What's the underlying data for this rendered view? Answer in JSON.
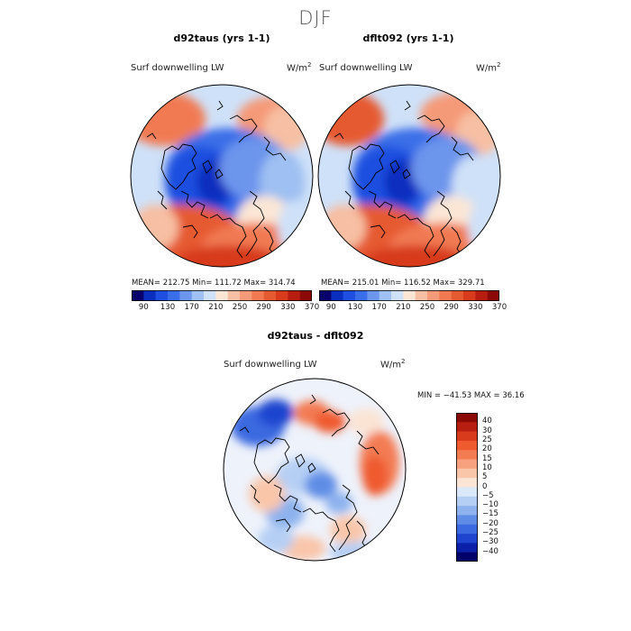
{
  "page": {
    "title": "DJF"
  },
  "panels": [
    {
      "title": "d92taus (yrs 1-1)",
      "variable": "Surf downwelling LW",
      "units": "W/m",
      "units_sup": "2",
      "stats": "MEAN= 212.75   Min= 111.72   Max= 314.74"
    },
    {
      "title": "dflt092 (yrs 1-1)",
      "variable": "Surf downwelling LW",
      "units": "W/m",
      "units_sup": "2",
      "stats": "MEAN= 215.01   Min= 116.52   Max= 329.71"
    },
    {
      "title": "d92taus - dflt092",
      "variable": "Surf downwelling LW",
      "units": "W/m",
      "units_sup": "2",
      "stats": "MIN = −41.53  MAX =   36.16"
    }
  ],
  "chart_data": [
    {
      "type": "heatmap",
      "projection": "north-polar-stereographic",
      "title": "d92taus (yrs 1-1)",
      "variable": "Surf downwelling LW",
      "units": "W/m2",
      "mean": 212.75,
      "min": 111.72,
      "max": 314.74,
      "colorbar_levels": [
        90,
        110,
        130,
        150,
        170,
        190,
        210,
        230,
        250,
        270,
        290,
        310,
        330,
        350,
        370
      ],
      "colorbar_tick_labels": [
        "90",
        "130",
        "170",
        "210",
        "250",
        "290",
        "330",
        "370"
      ]
    },
    {
      "type": "heatmap",
      "projection": "north-polar-stereographic",
      "title": "dflt092 (yrs 1-1)",
      "variable": "Surf downwelling LW",
      "units": "W/m2",
      "mean": 215.01,
      "min": 116.52,
      "max": 329.71,
      "colorbar_levels": [
        90,
        110,
        130,
        150,
        170,
        190,
        210,
        230,
        250,
        270,
        290,
        310,
        330,
        350,
        370
      ],
      "colorbar_tick_labels": [
        "90",
        "130",
        "170",
        "210",
        "250",
        "290",
        "330",
        "370"
      ]
    },
    {
      "type": "heatmap",
      "projection": "north-polar-stereographic",
      "title": "d92taus - dflt092",
      "variable": "Surf downwelling LW",
      "units": "W/m2",
      "min": -41.53,
      "max": 36.16,
      "colorbar_tick_labels": [
        "40",
        "30",
        "25",
        "20",
        "15",
        "10",
        "5",
        "0",
        "−5",
        "−10",
        "−15",
        "−20",
        "−25",
        "−30",
        "−40"
      ]
    }
  ],
  "colors": {
    "abs_scale": [
      "#08006b",
      "#0a2fbf",
      "#1f4fe0",
      "#3a6ee8",
      "#6c95ec",
      "#9ec0f2",
      "#cfe1f8",
      "#fbe6d6",
      "#f7bfa3",
      "#f59a78",
      "#f17a52",
      "#e65a32",
      "#d73b1c",
      "#b81e10",
      "#8a0a05"
    ],
    "diff_scale": [
      "#8a0a05",
      "#b81e10",
      "#d73b1c",
      "#ef5a2f",
      "#f37b52",
      "#f7a17f",
      "#f9c6aa",
      "#fbe4d4",
      "#dbe8f9",
      "#b5cff4",
      "#8db2ee",
      "#5f8de6",
      "#3a69e0",
      "#1f45cf",
      "#0a20a8",
      "#00006b"
    ],
    "coastline": "#000000"
  }
}
